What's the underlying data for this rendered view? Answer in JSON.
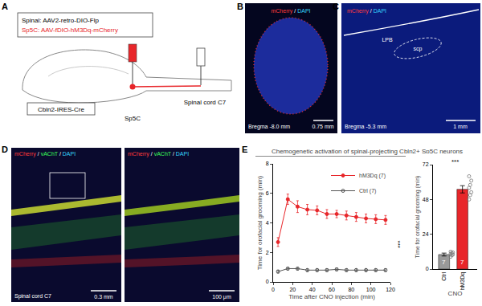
{
  "figure": {
    "A": {
      "label": "A",
      "spinal_injection": "Spinal: AAV2-retro-DIO-Flp",
      "sp5c_injection": "Sp5C: AAV-fDIO-hM3Dq-mCherry",
      "mouse_line": "Cbln2-IRES-Cre",
      "site1": "Sp5C",
      "site2": "Spinal cord C7"
    },
    "B": {
      "label": "B",
      "stain": "mCherry / DAPI",
      "bregma": "Bregma -8.0 mm",
      "scale_bar": "0.75 mm"
    },
    "C": {
      "label": "C",
      "stain": "mCherry / DAPI",
      "regions": [
        "LPB",
        "scp"
      ],
      "bregma": "Bregma -5.3 mm",
      "scale_bar": "1 mm"
    },
    "D": {
      "label": "D",
      "images": [
        {
          "stain": "mCherry / vAChT / DAPI",
          "region": "Spinal cord C7",
          "scale_bar": "0.3 mm"
        },
        {
          "stain": "mCherry / vAChT / DAPI",
          "scale_bar": "100 μm"
        }
      ]
    },
    "E": {
      "label": "E",
      "title": "Chemogenetic activation of spinal-projecting Cbln2+ Sp5C neurons"
    }
  },
  "chart_data": [
    {
      "type": "line",
      "x": [
        5,
        15,
        25,
        35,
        45,
        55,
        65,
        75,
        85,
        95,
        105,
        115
      ],
      "series": [
        {
          "name": "hM3Dq (7)",
          "color": "#e8262a",
          "marker": "circle",
          "values": [
            2.7,
            5.6,
            5.1,
            4.9,
            4.85,
            4.6,
            4.6,
            4.5,
            4.4,
            4.3,
            4.25,
            4.2
          ],
          "errors": [
            0.3,
            0.35,
            0.4,
            0.35,
            0.3,
            0.3,
            0.25,
            0.3,
            0.3,
            0.3,
            0.3,
            0.3
          ]
        },
        {
          "name": "Ctrl (7)",
          "color": "#555555",
          "marker": "circle-open",
          "values": [
            0.7,
            0.9,
            0.9,
            0.8,
            0.8,
            0.8,
            0.85,
            0.8,
            0.8,
            0.8,
            0.8,
            0.8
          ],
          "errors": [
            0.1,
            0.1,
            0.1,
            0.1,
            0.1,
            0.1,
            0.1,
            0.1,
            0.1,
            0.1,
            0.1,
            0.1
          ]
        }
      ],
      "xlabel": "Time after CNO injection (min)",
      "ylabel": "Time for orofacial grooming (min)",
      "xlim": [
        0,
        120
      ],
      "xticks": [
        0,
        20,
        40,
        60,
        80,
        100,
        120
      ],
      "ylim": [
        0,
        8
      ],
      "yticks": [
        0,
        2,
        4,
        6,
        8
      ],
      "grid": false,
      "legend": "top-right",
      "annotations": [
        {
          "text": "***"
        }
      ]
    },
    {
      "type": "bar",
      "categories": [
        "Ctrl",
        "hM3Dq"
      ],
      "values": [
        10,
        55
      ],
      "errors": [
        1,
        2.5
      ],
      "colors": [
        "#999999",
        "#e8262a"
      ],
      "points": [
        [
          8.5,
          9.5,
          10,
          10.5,
          11,
          11.5,
          12
        ],
        [
          48,
          51,
          53,
          56,
          58,
          61,
          64
        ]
      ],
      "n": [
        7,
        7
      ],
      "xlabel": "CNO",
      "ylabel": "Time for orofacial grooming (min)",
      "ylim": [
        0,
        72
      ],
      "yticks": [
        0,
        24,
        48,
        72
      ],
      "grid": false,
      "annotations": [
        {
          "text": "***"
        }
      ]
    }
  ]
}
